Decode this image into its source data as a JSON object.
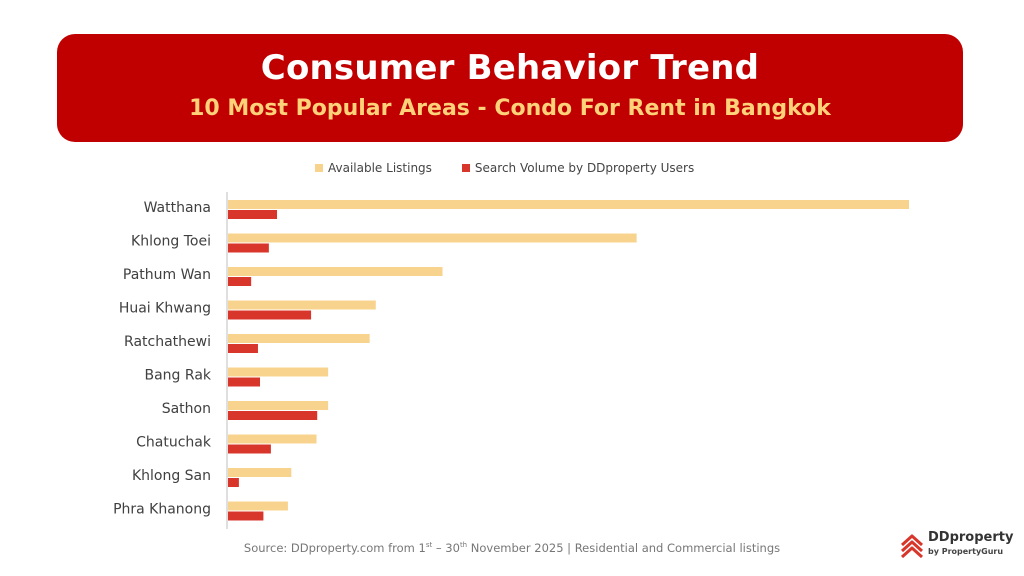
{
  "header": {
    "title": "Consumer Behavior Trend",
    "subtitle": "10 Most Popular Areas - Condo For Rent in Bangkok"
  },
  "source": {
    "prefix": "Source: DDproperty.com from 1",
    "sup1": "st",
    "mid": " – 30",
    "sup2": "th",
    "suffix": " November 2025 | Residential and Commercial listings"
  },
  "logo": {
    "brand": "DDproperty",
    "tagline": "by PropertyGuru"
  },
  "colors": {
    "banner": "#c00000",
    "subtitle": "#ffd27a",
    "available": "#f8d38e",
    "search": "#d9362b"
  },
  "chart_data": {
    "type": "bar",
    "orientation": "horizontal",
    "categories": [
      "Watthana",
      "Khlong Toei",
      "Pathum Wan",
      "Huai Khwang",
      "Ratchathewi",
      "Bang Rak",
      "Sathon",
      "Chatuchak",
      "Khlong San",
      "Phra Khanong"
    ],
    "series": [
      {
        "name": "Available Listings",
        "color": "#f8d38e",
        "values": [
          100,
          60,
          31.5,
          21.7,
          20.8,
          14.7,
          14.7,
          13,
          9.3,
          8.8
        ]
      },
      {
        "name": "Search Volume by DDproperty Users",
        "color": "#d9362b",
        "values": [
          7.2,
          6,
          3.4,
          12.2,
          4.4,
          4.7,
          13.1,
          6.3,
          1.6,
          5.2
        ]
      }
    ],
    "xlim": [
      0,
      100
    ],
    "legend_position": "top",
    "grid": false
  }
}
